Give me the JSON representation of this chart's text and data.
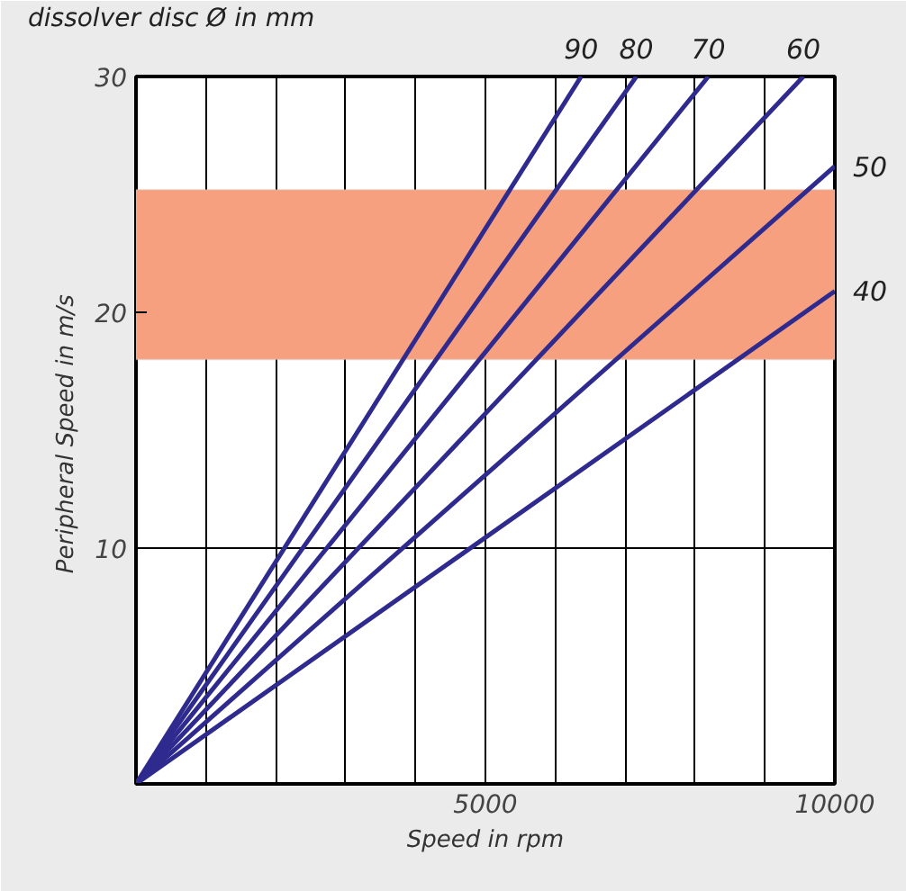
{
  "chart_data": {
    "type": "line",
    "title": "dissolver disc Ø in mm",
    "xlabel": "Speed in rpm",
    "ylabel": "Peripheral  Speed in m/s",
    "xlim": [
      0,
      10000
    ],
    "ylim": [
      0,
      30
    ],
    "xticks": [
      {
        "value": 1000,
        "label": null
      },
      {
        "value": 2000,
        "label": null
      },
      {
        "value": 3000,
        "label": null
      },
      {
        "value": 4000,
        "label": null
      },
      5000,
      {
        "value": 6000,
        "label": null
      },
      {
        "value": 7000,
        "label": null
      },
      {
        "value": 8000,
        "label": null
      },
      {
        "value": 9000,
        "label": null
      },
      10000
    ],
    "yticks": [
      {
        "value": 0,
        "label": null
      },
      10,
      20,
      30
    ],
    "grid": true,
    "marker": "none",
    "line_style": "solid",
    "bands": [
      {
        "axis": "y",
        "from": 18,
        "to": 25.2,
        "color": "#f7a07f"
      }
    ],
    "series": [
      {
        "name": "90",
        "color": "#2e2a8e",
        "x": [
          0,
          6370
        ],
        "values": [
          0,
          30
        ]
      },
      {
        "name": "80",
        "color": "#2e2a8e",
        "x": [
          0,
          7160
        ],
        "values": [
          0,
          30
        ]
      },
      {
        "name": "70",
        "color": "#2e2a8e",
        "x": [
          0,
          8190
        ],
        "values": [
          0,
          30
        ]
      },
      {
        "name": "60",
        "color": "#2e2a8e",
        "x": [
          0,
          9550
        ],
        "values": [
          0,
          30
        ]
      },
      {
        "name": "50",
        "color": "#2e2a8e",
        "x": [
          0,
          10000
        ],
        "values": [
          0,
          26.2
        ]
      },
      {
        "name": "40",
        "color": "#2e2a8e",
        "x": [
          0,
          10000
        ],
        "values": [
          0,
          20.9
        ]
      }
    ]
  }
}
